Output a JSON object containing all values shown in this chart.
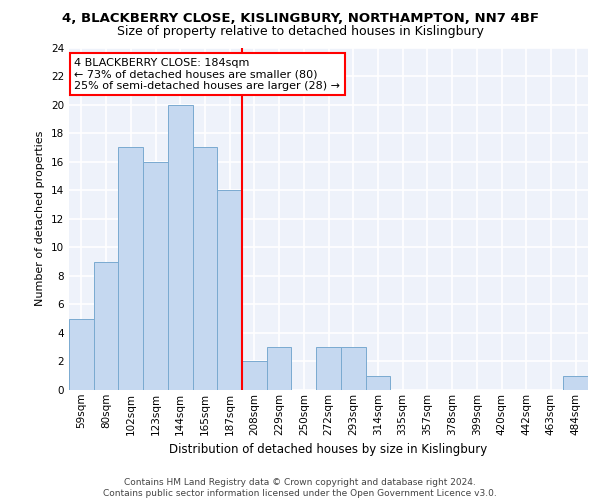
{
  "title": "4, BLACKBERRY CLOSE, KISLINGBURY, NORTHAMPTON, NN7 4BF",
  "subtitle": "Size of property relative to detached houses in Kislingbury",
  "xlabel": "Distribution of detached houses by size in Kislingbury",
  "ylabel": "Number of detached properties",
  "categories": [
    "59sqm",
    "80sqm",
    "102sqm",
    "123sqm",
    "144sqm",
    "165sqm",
    "187sqm",
    "208sqm",
    "229sqm",
    "250sqm",
    "272sqm",
    "293sqm",
    "314sqm",
    "335sqm",
    "357sqm",
    "378sqm",
    "399sqm",
    "420sqm",
    "442sqm",
    "463sqm",
    "484sqm"
  ],
  "values": [
    5,
    9,
    17,
    16,
    20,
    17,
    14,
    2,
    3,
    0,
    3,
    3,
    1,
    0,
    0,
    0,
    0,
    0,
    0,
    0,
    1
  ],
  "bar_color": "#c5d8f0",
  "bar_edge_color": "#7aaad0",
  "vline_x": 6.5,
  "vline_color": "red",
  "annotation_text": "4 BLACKBERRY CLOSE: 184sqm\n← 73% of detached houses are smaller (80)\n25% of semi-detached houses are larger (28) →",
  "annotation_box_color": "white",
  "annotation_box_edge_color": "red",
  "ylim": [
    0,
    24
  ],
  "yticks": [
    0,
    2,
    4,
    6,
    8,
    10,
    12,
    14,
    16,
    18,
    20,
    22,
    24
  ],
  "footer_text": "Contains HM Land Registry data © Crown copyright and database right 2024.\nContains public sector information licensed under the Open Government Licence v3.0.",
  "background_color": "#eef2fa",
  "grid_color": "white",
  "title_fontsize": 9.5,
  "subtitle_fontsize": 9,
  "ylabel_fontsize": 8,
  "xlabel_fontsize": 8.5,
  "tick_fontsize": 7.5,
  "annotation_fontsize": 8,
  "footer_fontsize": 6.5
}
